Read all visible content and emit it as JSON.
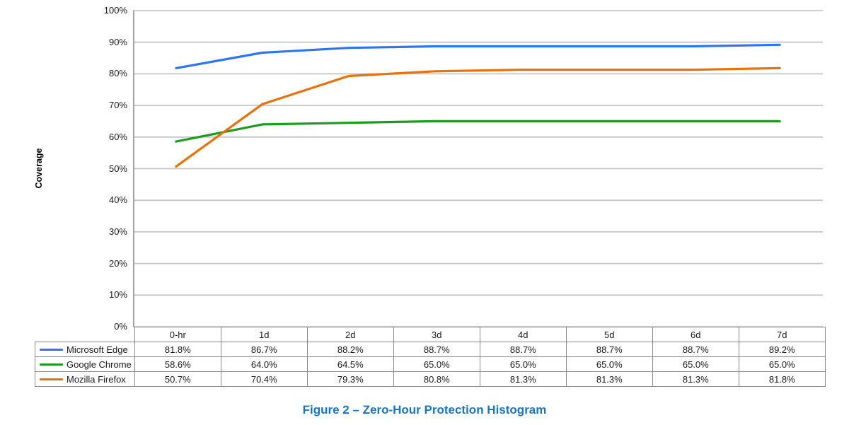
{
  "figure": {
    "caption": "Figure 2 – Zero-Hour Protection Histogram"
  },
  "colors": {
    "caption_blue": "#1B75BC",
    "gridline": "#C6C6C6",
    "axis": "#9B9B9B",
    "table_border": "#8A8A8A",
    "text": "#1A1A1A"
  },
  "chart_data": {
    "type": "line",
    "title": "",
    "ylabel": "Coverage",
    "xlabel": "",
    "ylim": [
      0,
      100
    ],
    "yticks": [
      0,
      10,
      20,
      30,
      40,
      50,
      60,
      70,
      80,
      90,
      100
    ],
    "ytick_suffix": "%",
    "value_suffix": "%",
    "grid": true,
    "legend_position": "table-rows-left",
    "categories": [
      "0-hr",
      "1d",
      "2d",
      "3d",
      "4d",
      "5d",
      "6d",
      "7d"
    ],
    "series": [
      {
        "name": "Microsoft Edge",
        "color": "#2D76F0",
        "values": [
          81.8,
          86.7,
          88.2,
          88.7,
          88.7,
          88.7,
          88.7,
          89.2
        ]
      },
      {
        "name": "Google Chrome",
        "color": "#1B9C21",
        "values": [
          58.6,
          64.0,
          64.5,
          65.0,
          65.0,
          65.0,
          65.0,
          65.0
        ]
      },
      {
        "name": "Mozilla Firefox",
        "color": "#E8710A",
        "values": [
          50.7,
          70.4,
          79.3,
          80.8,
          81.3,
          81.3,
          81.3,
          81.8
        ]
      }
    ]
  }
}
